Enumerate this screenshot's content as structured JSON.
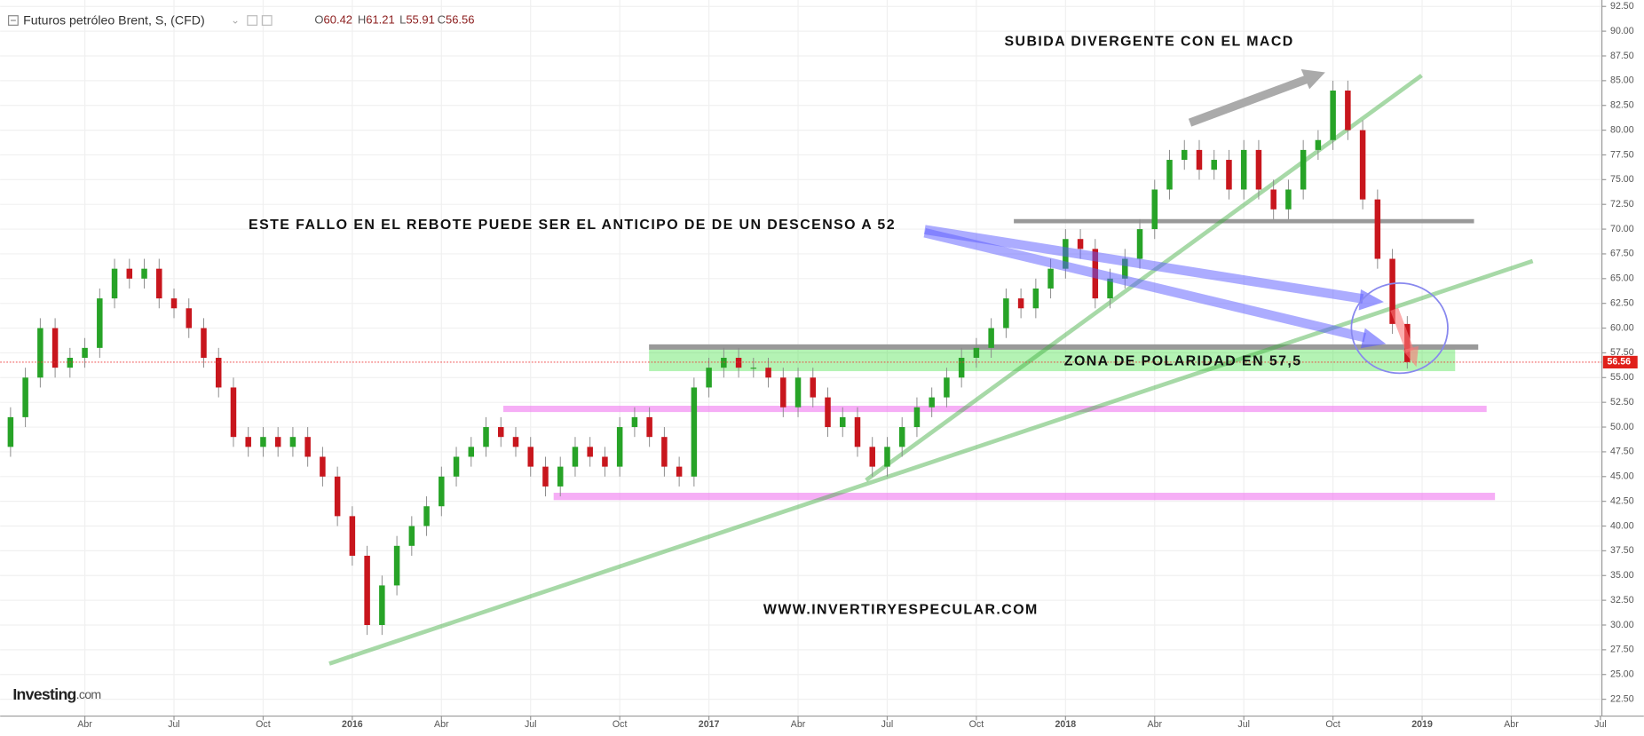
{
  "chart_data": {
    "type": "candlestick",
    "title": "Futuros petróleo Brent, S, (CFD)",
    "ohlc_labels": [
      "O",
      "H",
      "L",
      "C"
    ],
    "annotations": [
      "SUBIDA DIVERGENTE CON EL MACD",
      "ESTE FALLO EN EL REBOTE PUEDE SER EL ANTICIPO DE DE UN DESCENSO A 52",
      "ZONA DE POLARIDAD  EN 57,5",
      "WWW.INVERTIRYESPECULAR.COM"
    ],
    "logo": "Investing",
    "logo_suffix": ".com",
    "up_color": "#27a327",
    "down_color": "#c8161d",
    "x": [
      0.5,
      1,
      1.5,
      2,
      2.5,
      3,
      3.5,
      4,
      4.5,
      5,
      5.5,
      6,
      6.5,
      7,
      7.5,
      8,
      8.5,
      9,
      9.5,
      10,
      10.5,
      11,
      11.5,
      12,
      12.5,
      13,
      13.5,
      14,
      14.5,
      15,
      15.5,
      16,
      16.5,
      17,
      17.5,
      18,
      18.5,
      19,
      19.5,
      20,
      20.5,
      21,
      21.5,
      22,
      22.5,
      23,
      23.5,
      24,
      24.5,
      25,
      25.5,
      26,
      26.5,
      27,
      27.5,
      28,
      28.5,
      29,
      29.5,
      30,
      30.5,
      31,
      31.5,
      32,
      32.5,
      33,
      33.5,
      34,
      34.5,
      35,
      35.5,
      36,
      36.5,
      37,
      37.5,
      38,
      38.5,
      39,
      39.5,
      40,
      40.5,
      41,
      41.5,
      42,
      42.5,
      43,
      43.5,
      44,
      44.5,
      45,
      45.5,
      46,
      46.5,
      47,
      47.5
    ],
    "open": [
      48,
      51,
      55,
      60,
      56,
      57,
      58,
      63,
      66,
      65,
      66,
      63,
      62,
      60,
      57,
      54,
      49,
      48,
      49,
      48,
      49,
      47,
      45,
      41,
      37,
      30,
      34,
      38,
      40,
      42,
      45,
      47,
      48,
      50,
      49,
      48,
      46,
      44,
      46,
      48,
      47,
      46,
      50,
      51,
      49,
      46,
      45,
      54,
      56,
      57,
      56,
      56,
      55,
      52,
      55,
      53,
      50,
      51,
      48,
      46,
      48,
      50,
      52,
      53,
      55,
      57,
      58,
      60,
      63,
      62,
      64,
      66,
      69,
      68,
      63,
      65,
      67,
      70,
      74,
      77,
      78,
      76,
      77,
      74,
      78,
      74,
      72,
      74,
      78,
      79,
      84,
      80,
      73,
      67,
      60.42
    ],
    "high": [
      52,
      56,
      61,
      61,
      58,
      59,
      64,
      67,
      67,
      67,
      67,
      64,
      63,
      61,
      58,
      55,
      50,
      50,
      50,
      50,
      50,
      48,
      46,
      42,
      38,
      35,
      39,
      41,
      43,
      46,
      48,
      49,
      51,
      51,
      50,
      49,
      47,
      47,
      49,
      49,
      48,
      51,
      52,
      52,
      50,
      47,
      55,
      57,
      58,
      58,
      57,
      57,
      56,
      56,
      56,
      54,
      52,
      52,
      49,
      49,
      51,
      53,
      54,
      56,
      58,
      59,
      61,
      64,
      64,
      65,
      67,
      70,
      70,
      69,
      66,
      68,
      71,
      75,
      78,
      79,
      79,
      78,
      78,
      79,
      79,
      75,
      75,
      79,
      80,
      85,
      85,
      81,
      74,
      68,
      61.21
    ],
    "low": [
      47,
      50,
      54,
      55,
      55,
      56,
      57,
      62,
      64,
      64,
      62,
      61,
      59,
      56,
      53,
      48,
      47,
      47,
      47,
      47,
      46,
      44,
      40,
      36,
      29,
      29,
      33,
      37,
      39,
      41,
      44,
      46,
      47,
      48,
      47,
      45,
      43,
      43,
      45,
      46,
      45,
      45,
      49,
      48,
      45,
      44,
      44,
      53,
      55,
      55,
      55,
      54,
      51,
      51,
      52,
      49,
      49,
      47,
      45,
      45,
      47,
      49,
      51,
      52,
      54,
      56,
      57,
      59,
      61,
      61,
      63,
      65,
      67,
      62,
      62,
      64,
      66,
      69,
      73,
      76,
      75,
      75,
      73,
      73,
      73,
      71,
      71,
      73,
      77,
      78,
      79,
      72,
      66,
      59.42,
      55.91
    ],
    "close": [
      51,
      55,
      60,
      56,
      57,
      58,
      63,
      66,
      65,
      66,
      63,
      62,
      60,
      57,
      54,
      49,
      48,
      49,
      48,
      49,
      47,
      45,
      41,
      37,
      30,
      34,
      38,
      40,
      42,
      45,
      47,
      48,
      50,
      49,
      48,
      46,
      44,
      46,
      48,
      47,
      46,
      50,
      51,
      49,
      46,
      45,
      54,
      56,
      57,
      56,
      56,
      55,
      52,
      55,
      53,
      50,
      51,
      48,
      46,
      48,
      50,
      52,
      53,
      55,
      57,
      58,
      60,
      63,
      62,
      64,
      66,
      69,
      68,
      63,
      65,
      67,
      70,
      74,
      77,
      78,
      76,
      77,
      74,
      78,
      74,
      72,
      74,
      78,
      79,
      84,
      80,
      73,
      67,
      60.42,
      56.56
    ],
    "xlim": [
      0.15,
      54.05
    ],
    "xticks": [
      {
        "value": 3,
        "label": "Abr"
      },
      {
        "value": 6,
        "label": "Jul"
      },
      {
        "value": 9,
        "label": "Oct"
      },
      {
        "value": 12,
        "label": "2016"
      },
      {
        "value": 15,
        "label": "Abr"
      },
      {
        "value": 18,
        "label": "Jul"
      },
      {
        "value": 21,
        "label": "Oct"
      },
      {
        "value": 24,
        "label": "2017"
      },
      {
        "value": 27,
        "label": "Abr"
      },
      {
        "value": 30,
        "label": "Jul"
      },
      {
        "value": 33,
        "label": "Oct"
      },
      {
        "value": 36,
        "label": "2018"
      },
      {
        "value": 39,
        "label": "Abr"
      },
      {
        "value": 42,
        "label": "Jul"
      },
      {
        "value": 45,
        "label": "Oct"
      },
      {
        "value": 48,
        "label": "2019"
      },
      {
        "value": 51,
        "label": "Abr"
      },
      {
        "value": 54,
        "label": "Jul"
      }
    ],
    "ylim": [
      20.8,
      93.15
    ],
    "yticks": [
      {
        "value": 22.5,
        "label": "22.50"
      },
      {
        "value": 25,
        "label": "25.00"
      },
      {
        "value": 27.5,
        "label": "27.50"
      },
      {
        "value": 30,
        "label": "30.00"
      },
      {
        "value": 32.5,
        "label": "32.50"
      },
      {
        "value": 35,
        "label": "35.00"
      },
      {
        "value": 37.5,
        "label": "37.50"
      },
      {
        "value": 40,
        "label": "40.00"
      },
      {
        "value": 42.5,
        "label": "42.50"
      },
      {
        "value": 45,
        "label": "45.00"
      },
      {
        "value": 47.5,
        "label": "47.50"
      },
      {
        "value": 50,
        "label": "50.00"
      },
      {
        "value": 52.5,
        "label": "52.50"
      },
      {
        "value": 55,
        "label": "55.00"
      },
      {
        "value": 57.5,
        "label": "57.50"
      },
      {
        "value": 60,
        "label": "60.00"
      },
      {
        "value": 62.5,
        "label": "62.50"
      },
      {
        "value": 65,
        "label": "65.00"
      },
      {
        "value": 67.5,
        "label": "67.50"
      },
      {
        "value": 70,
        "label": "70.00"
      },
      {
        "value": 72.5,
        "label": "72.50"
      },
      {
        "value": 75,
        "label": "75.00"
      },
      {
        "value": 77.5,
        "label": "77.50"
      },
      {
        "value": 80,
        "label": "80.00"
      },
      {
        "value": 82.5,
        "label": "82.50"
      },
      {
        "value": 85,
        "label": "85.00"
      },
      {
        "value": 87.5,
        "label": "87.50"
      },
      {
        "value": 90,
        "label": "90.00"
      },
      {
        "value": 92.5,
        "label": "92.50"
      }
    ],
    "grid": true
  }
}
